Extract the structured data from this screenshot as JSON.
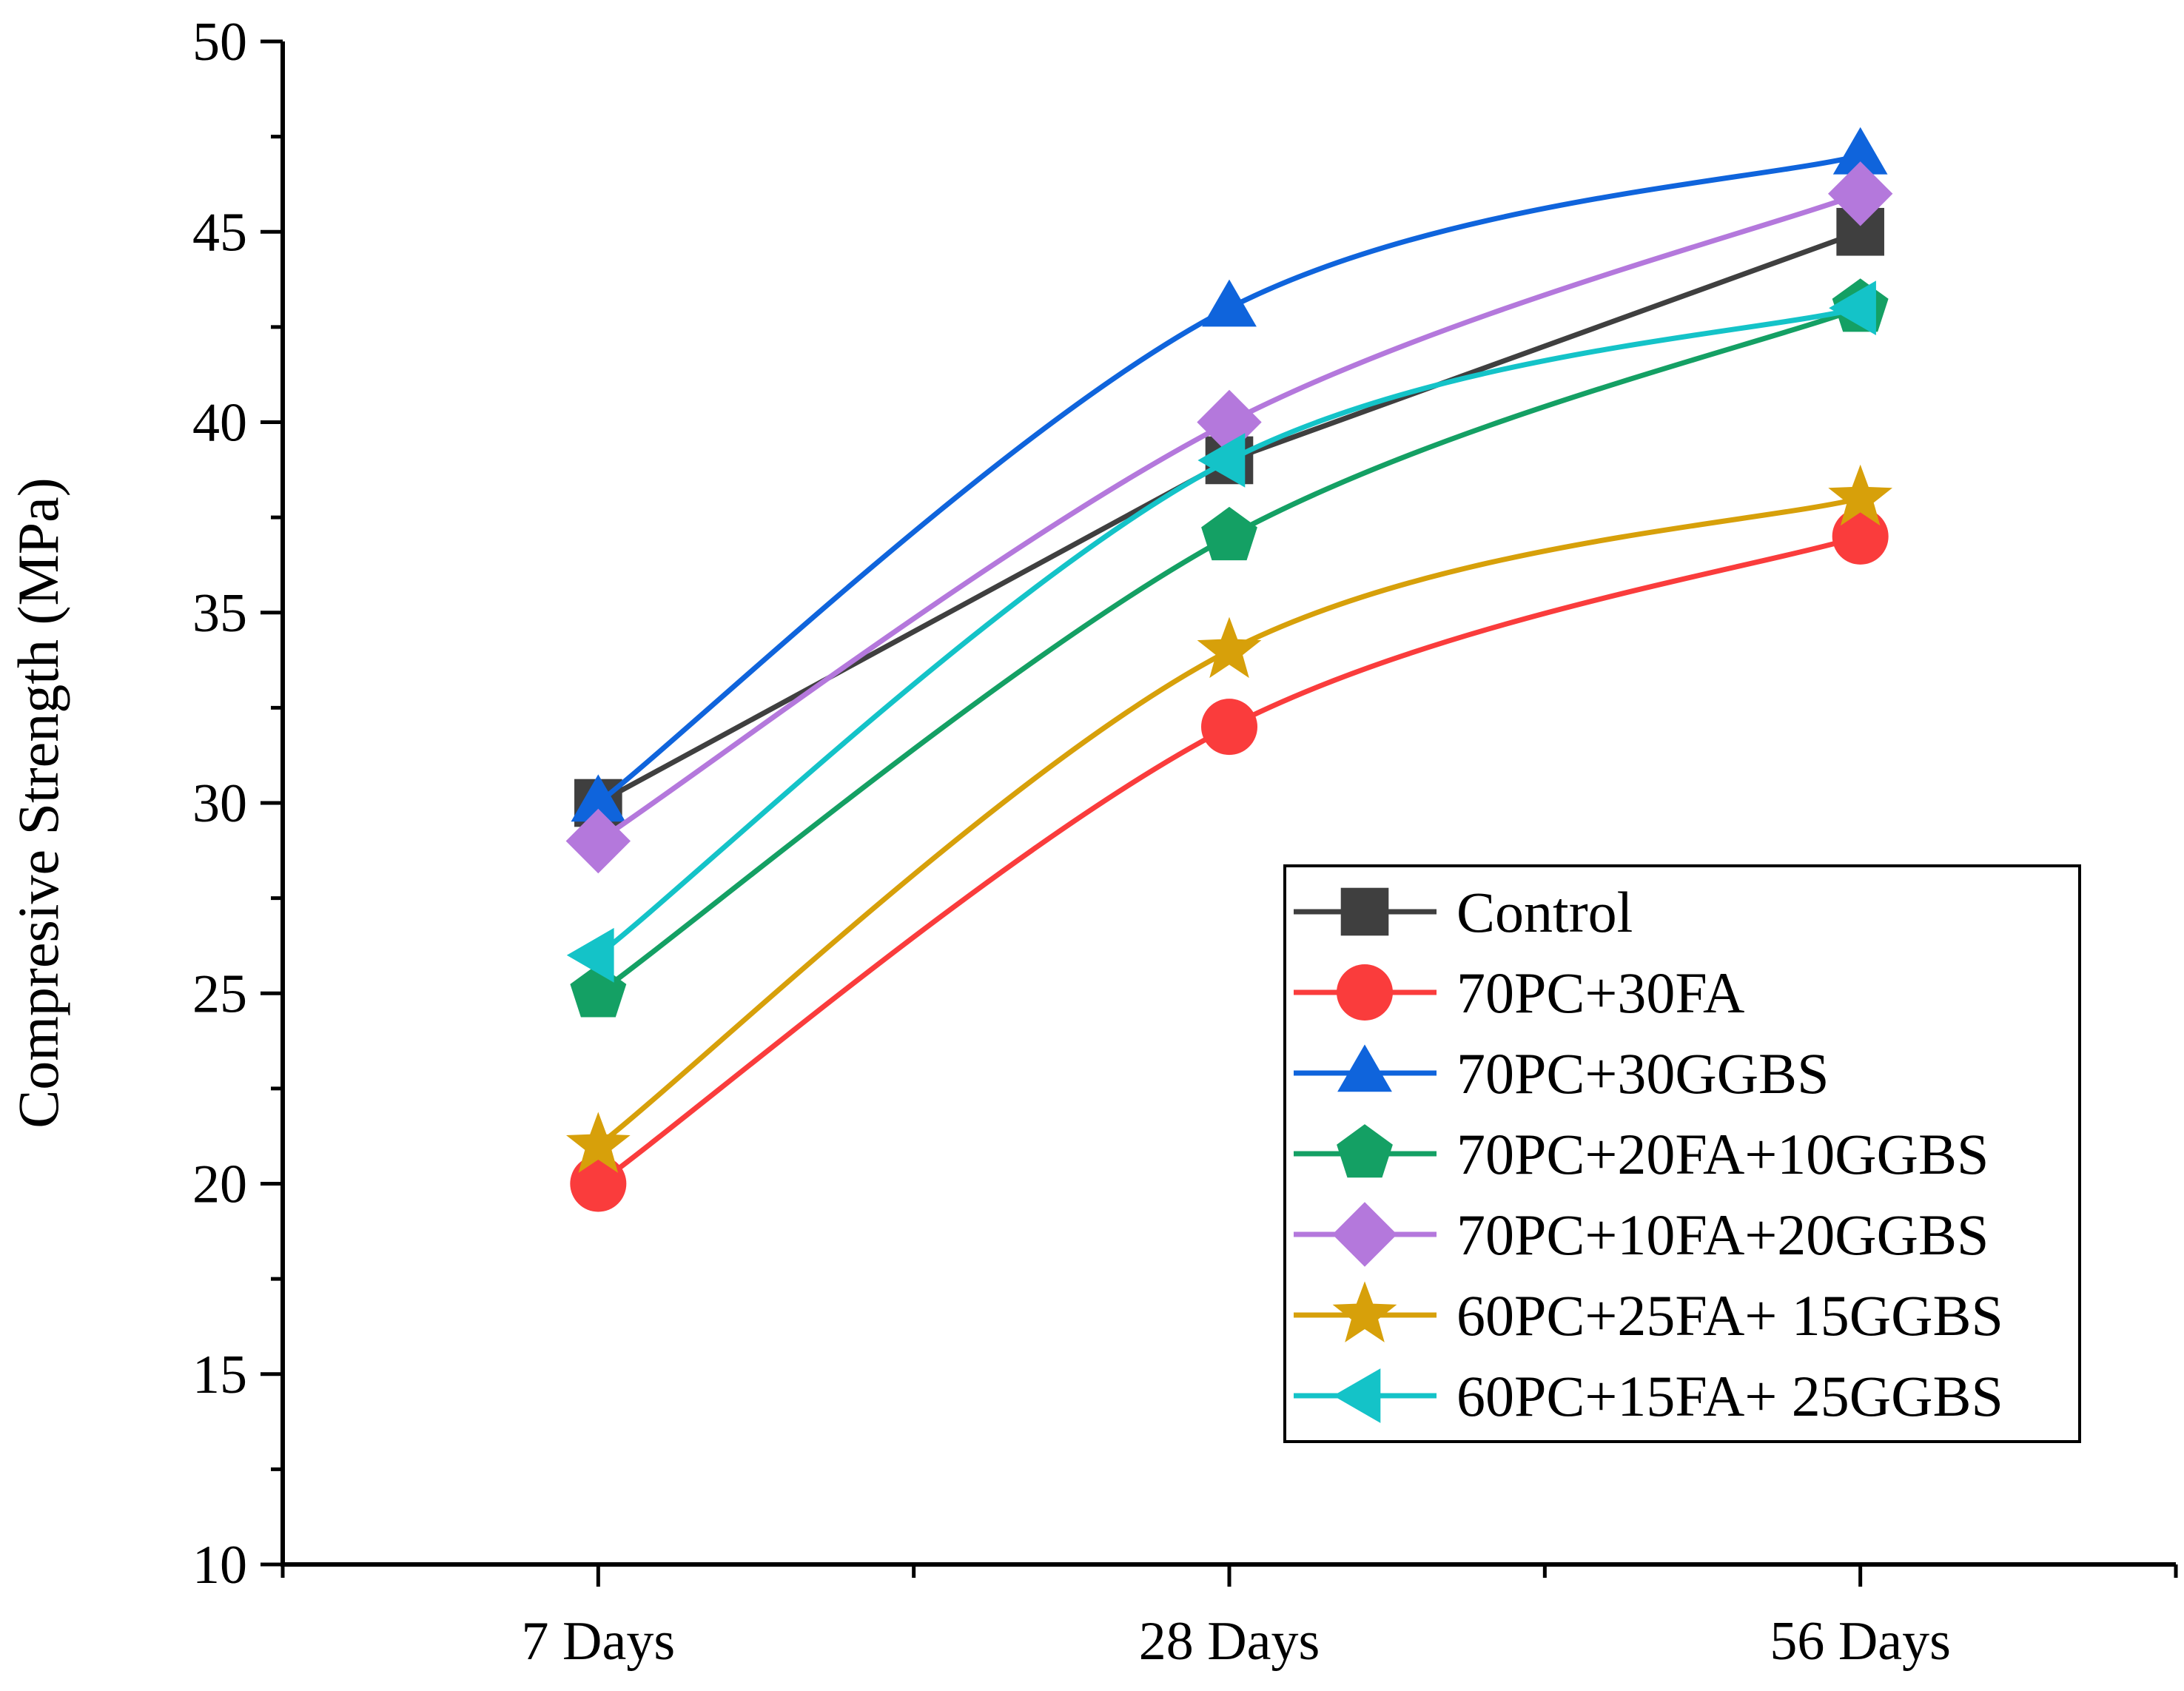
{
  "chart_data": {
    "type": "line",
    "title": "",
    "xlabel": "",
    "ylabel": "Compresive Strength (MPa)",
    "categories": [
      "7 Days",
      "28 Days",
      "56 Days"
    ],
    "ylim": [
      10,
      50
    ],
    "yticks": [
      "10",
      "15",
      "20",
      "25",
      "30",
      "35",
      "40",
      "45",
      "50"
    ],
    "grid": false,
    "legend_position": "bottom-right",
    "series": [
      {
        "name": "Control",
        "values": [
          30,
          39,
          45
        ],
        "color": "#3f3f3f",
        "marker": "square",
        "smooth": false
      },
      {
        "name": "70PC+30FA",
        "values": [
          20,
          32,
          37
        ],
        "color": "#fa3c3c",
        "marker": "circle",
        "smooth": true
      },
      {
        "name": "70PC+30GGBS",
        "values": [
          30,
          43,
          47
        ],
        "color": "#0f64dc",
        "marker": "triangle-up",
        "smooth": true
      },
      {
        "name": "70PC+20FA+10GGBS",
        "values": [
          25,
          37,
          43
        ],
        "color": "#14a064",
        "marker": "pentagon",
        "smooth": true
      },
      {
        "name": "70PC+10FA+20GGBS",
        "values": [
          29,
          40,
          46
        ],
        "color": "#b478dc",
        "marker": "diamond",
        "smooth": true
      },
      {
        "name": "60PC+25FA+ 15GGBS",
        "values": [
          21,
          34,
          38
        ],
        "color": "#d7a00a",
        "marker": "star",
        "smooth": true
      },
      {
        "name": "60PC+15FA+ 25GGBS",
        "values": [
          26,
          39,
          43
        ],
        "color": "#14c3c8",
        "marker": "triangle-left",
        "smooth": true
      }
    ]
  }
}
